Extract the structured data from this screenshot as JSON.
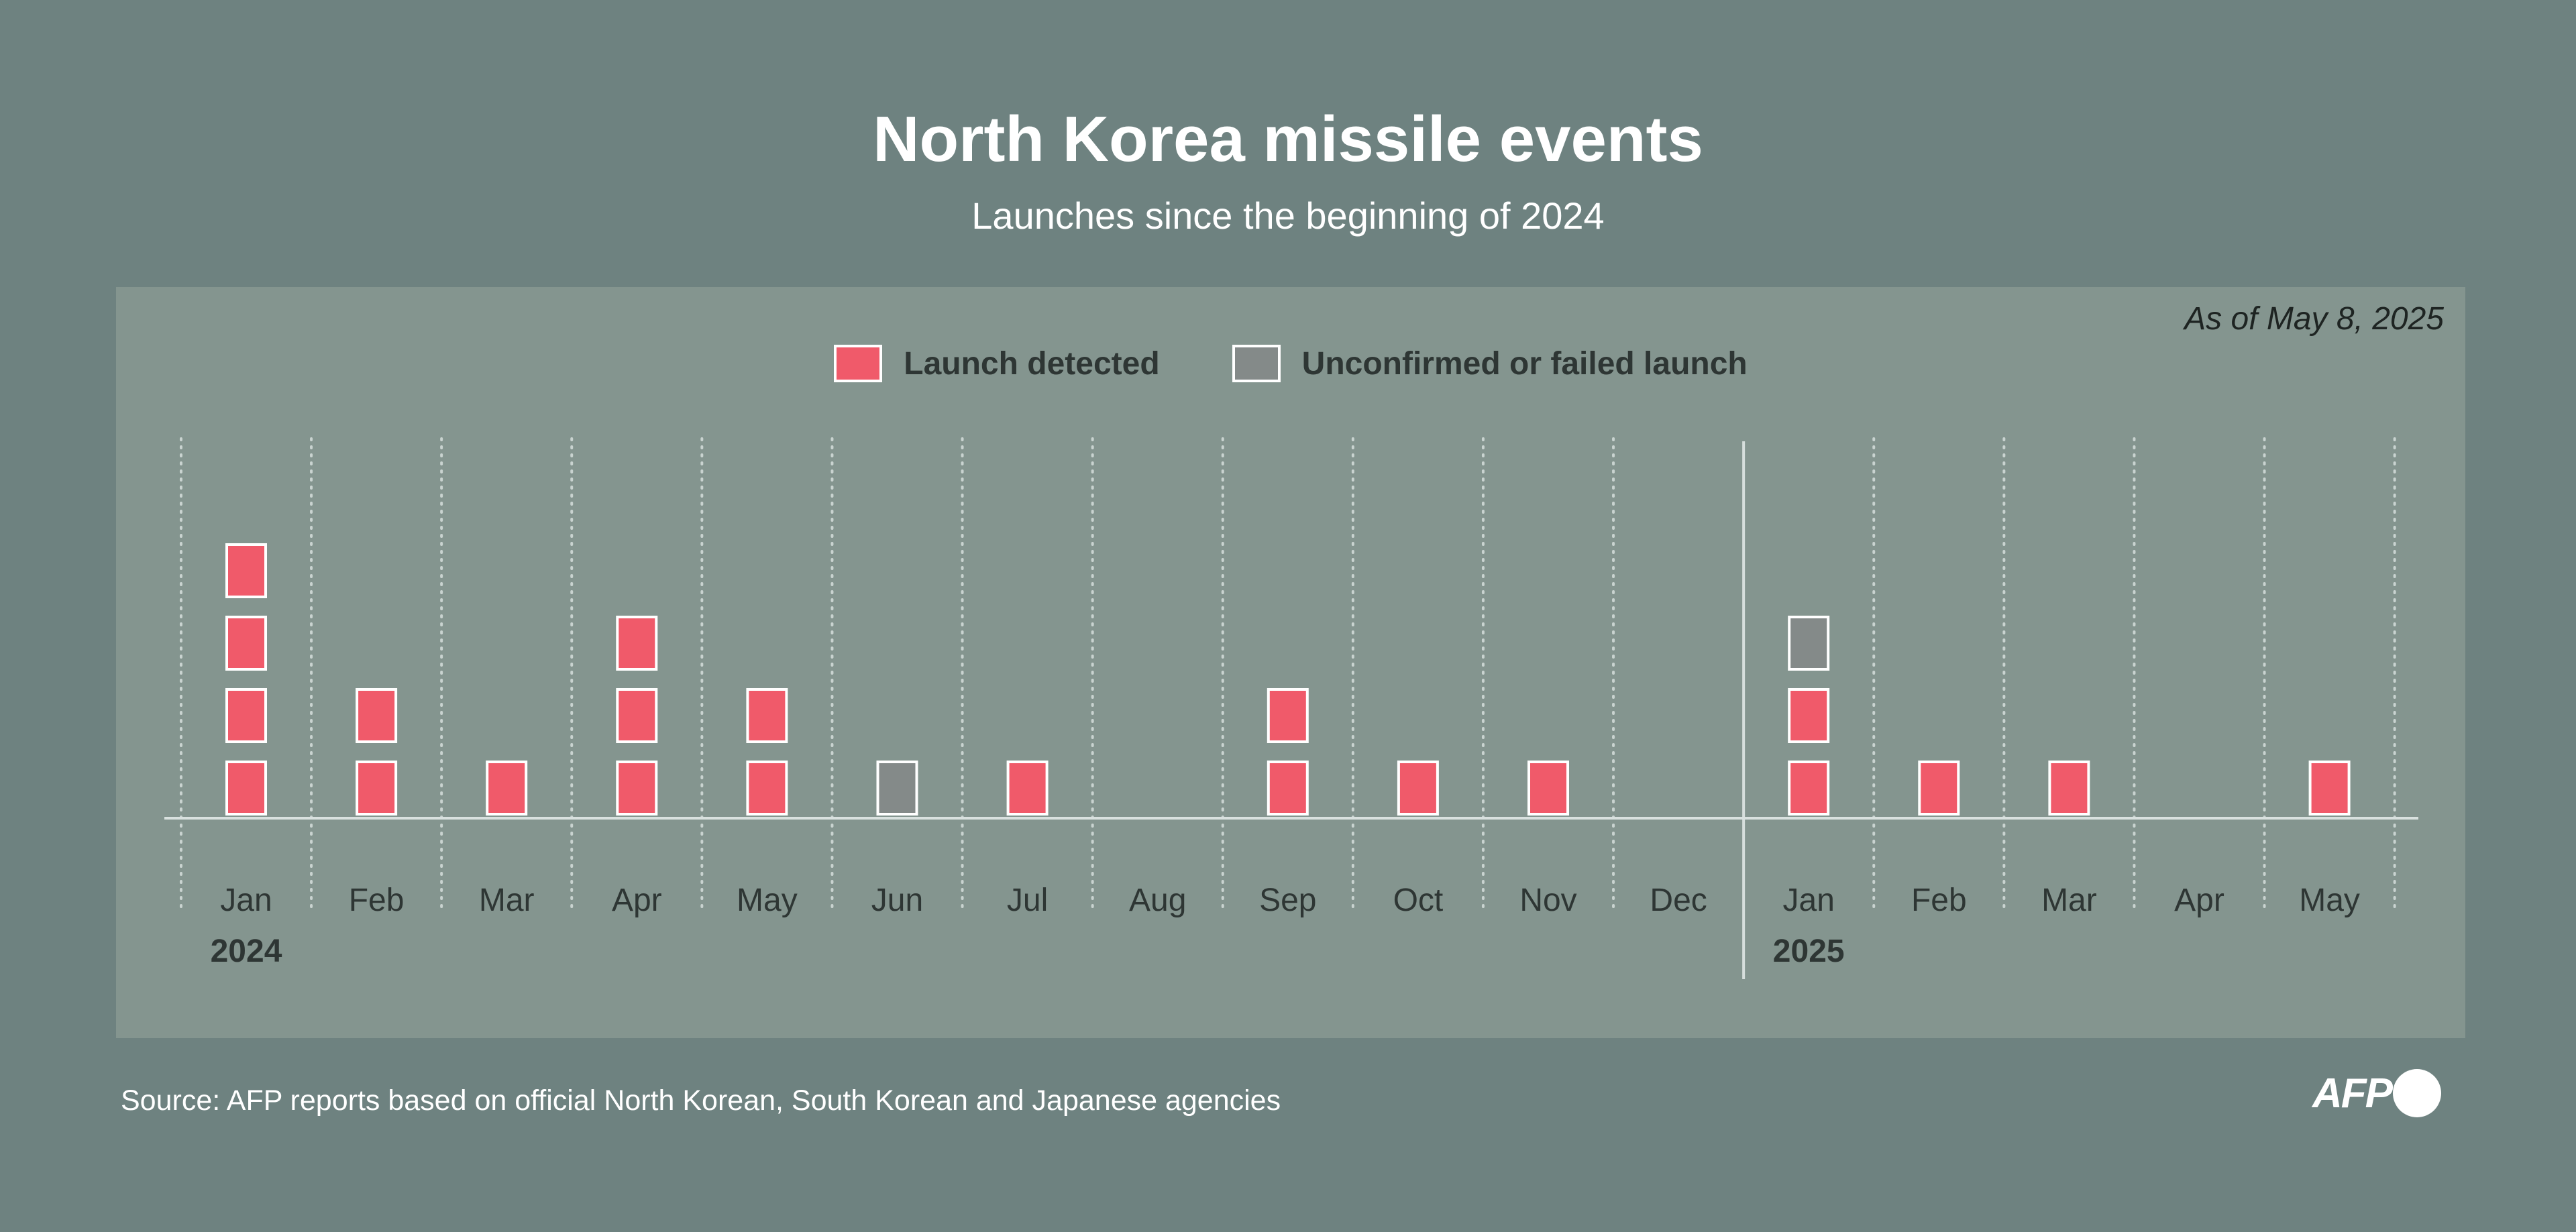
{
  "title": "North Korea missile events",
  "subtitle": "Launches since the beginning of 2024",
  "as_of": "As of May 8, 2025",
  "source": "Source: AFP reports based on official North Korean, South Korean and Japanese agencies",
  "logo": "AFP",
  "colors": {
    "background": "#6e8280",
    "panel": "#84958f",
    "launch_detected": "#f05a6a",
    "unconfirmed": "#848a89"
  },
  "legend": [
    {
      "label": "Launch detected",
      "color": "#f05a6a"
    },
    {
      "label": "Unconfirmed or failed launch",
      "color": "#848a89"
    }
  ],
  "chart_data": {
    "type": "bar",
    "title": "North Korea missile events",
    "subtitle": "Launches since the beginning of 2024",
    "categories": [
      "Jan",
      "Feb",
      "Mar",
      "Apr",
      "May",
      "Jun",
      "Jul",
      "Aug",
      "Sep",
      "Oct",
      "Nov",
      "Dec",
      "Jan",
      "Feb",
      "Mar",
      "Apr",
      "May"
    ],
    "year_labels": [
      {
        "label": "2024",
        "category_index": 0
      },
      {
        "label": "2025",
        "category_index": 12
      }
    ],
    "stacked": true,
    "series": [
      {
        "name": "Launch detected",
        "values": [
          4,
          2,
          1,
          3,
          2,
          0,
          1,
          0,
          2,
          1,
          1,
          0,
          2,
          1,
          1,
          0,
          1
        ]
      },
      {
        "name": "Unconfirmed or failed launch",
        "values": [
          0,
          0,
          0,
          0,
          0,
          1,
          0,
          0,
          0,
          0,
          0,
          0,
          1,
          0,
          0,
          0,
          0
        ]
      }
    ],
    "ylim": [
      0,
      4
    ],
    "grid": "dotted vertical lines between months",
    "legend_position": "top-center"
  }
}
